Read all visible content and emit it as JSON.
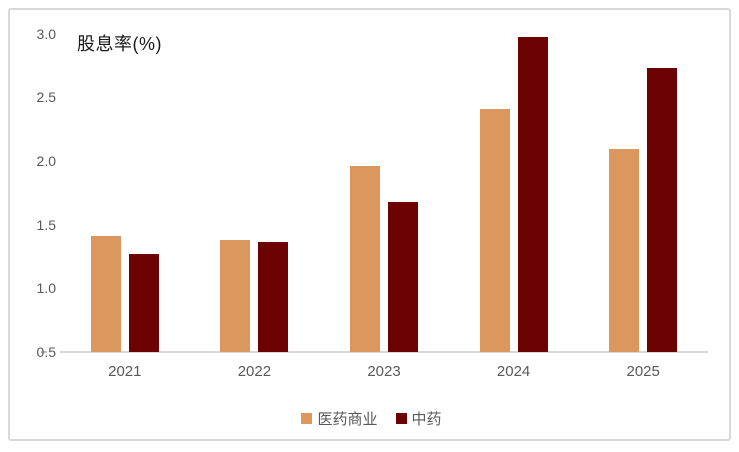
{
  "chart": {
    "title": "股息率(%)"
  },
  "colors": {
    "series_1": "#DC975E",
    "series_2": "#6D0202",
    "axis_line": "#D9D9D9",
    "tick_text": "#595959",
    "title_text": "#1A1A1A",
    "card_border": "#D9D9D9"
  },
  "chart_data": {
    "type": "bar",
    "title": "股息率(%)",
    "categories": [
      "2021",
      "2022",
      "2023",
      "2024",
      "2025"
    ],
    "series": [
      {
        "name": "医药商业",
        "color": "#DC975E",
        "values": [
          1.41,
          1.38,
          1.96,
          2.41,
          2.09
        ]
      },
      {
        "name": "中药",
        "color": "#6D0202",
        "values": [
          1.27,
          1.36,
          1.68,
          2.97,
          2.73
        ]
      }
    ],
    "ylabel": "股息率(%)",
    "xlabel": "",
    "ylim": [
      0.5,
      3.0
    ],
    "yticks": [
      0.5,
      1.0,
      1.5,
      2.0,
      2.5,
      3.0
    ],
    "ytick_format": "one_decimal",
    "grid": false,
    "legend_position": "bottom"
  }
}
